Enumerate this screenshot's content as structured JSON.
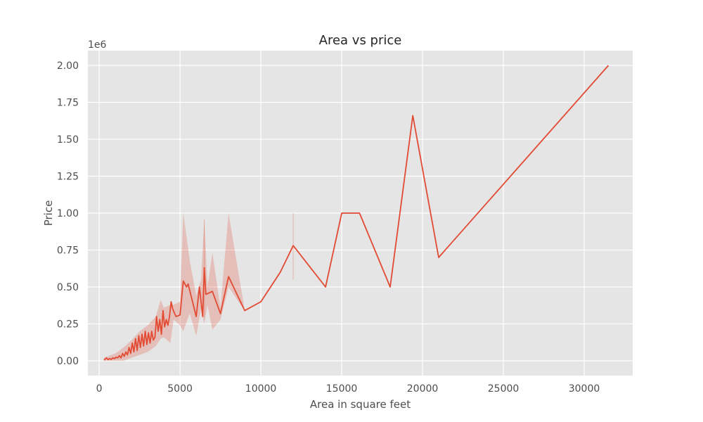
{
  "chart_data": {
    "type": "line",
    "title": "Area vs price",
    "xlabel": "Area in square feet",
    "ylabel": "Price",
    "y_scale_label": "1e6",
    "xlim": [
      -700,
      33000
    ],
    "ylim": [
      -0.1,
      2.1
    ],
    "x_ticks": [
      0,
      5000,
      10000,
      15000,
      20000,
      25000,
      30000
    ],
    "x_tick_labels": [
      "0",
      "5000",
      "10000",
      "15000",
      "20000",
      "25000",
      "30000"
    ],
    "y_ticks": [
      0.0,
      0.25,
      0.5,
      0.75,
      1.0,
      1.25,
      1.5,
      1.75,
      2.0
    ],
    "y_tick_labels": [
      "0.00",
      "0.25",
      "0.50",
      "0.75",
      "1.00",
      "1.25",
      "1.50",
      "1.75",
      "2.00"
    ],
    "grid": true,
    "colors": {
      "line": "#e24a33",
      "band": "#e24a33",
      "plot_bg": "#e5e5e5",
      "grid": "#ffffff"
    },
    "series": [
      {
        "points": [
          [
            300,
            0.005
          ],
          [
            450,
            0.02
          ],
          [
            550,
            0.008
          ],
          [
            650,
            0.015
          ],
          [
            750,
            0.01
          ],
          [
            850,
            0.02
          ],
          [
            950,
            0.015
          ],
          [
            1050,
            0.025
          ],
          [
            1150,
            0.02
          ],
          [
            1250,
            0.035
          ],
          [
            1350,
            0.02
          ],
          [
            1450,
            0.05
          ],
          [
            1550,
            0.03
          ],
          [
            1650,
            0.06
          ],
          [
            1750,
            0.04
          ],
          [
            1850,
            0.09
          ],
          [
            1950,
            0.05
          ],
          [
            2050,
            0.12
          ],
          [
            2150,
            0.06
          ],
          [
            2250,
            0.15
          ],
          [
            2350,
            0.07
          ],
          [
            2450,
            0.17
          ],
          [
            2550,
            0.09
          ],
          [
            2650,
            0.18
          ],
          [
            2750,
            0.1
          ],
          [
            2850,
            0.2
          ],
          [
            2950,
            0.11
          ],
          [
            3050,
            0.19
          ],
          [
            3150,
            0.12
          ],
          [
            3250,
            0.2
          ],
          [
            3350,
            0.14
          ],
          [
            3450,
            0.16
          ],
          [
            3550,
            0.3
          ],
          [
            3650,
            0.2
          ],
          [
            3750,
            0.28
          ],
          [
            3850,
            0.18
          ],
          [
            3950,
            0.34
          ],
          [
            4050,
            0.23
          ],
          [
            4150,
            0.28
          ],
          [
            4250,
            0.24
          ],
          [
            4350,
            0.3
          ],
          [
            4450,
            0.4
          ],
          [
            4550,
            0.35
          ],
          [
            4750,
            0.3
          ],
          [
            5000,
            0.31
          ],
          [
            5200,
            0.54
          ],
          [
            5400,
            0.5
          ],
          [
            5500,
            0.52
          ],
          [
            6000,
            0.3
          ],
          [
            6200,
            0.5
          ],
          [
            6400,
            0.3
          ],
          [
            6500,
            0.63
          ],
          [
            6600,
            0.45
          ],
          [
            7000,
            0.47
          ],
          [
            7500,
            0.32
          ],
          [
            8000,
            0.57
          ],
          [
            9000,
            0.34
          ],
          [
            10000,
            0.4
          ],
          [
            11200,
            0.6
          ],
          [
            12000,
            0.78
          ],
          [
            14000,
            0.5
          ],
          [
            15000,
            1.0
          ],
          [
            16100,
            1.0
          ],
          [
            18000,
            0.5
          ],
          [
            19400,
            1.66
          ],
          [
            21000,
            0.7
          ],
          [
            31500,
            2.0
          ]
        ],
        "band": [
          [
            300,
            0.0,
            0.02
          ],
          [
            1000,
            0.0,
            0.05
          ],
          [
            1500,
            0.0,
            0.09
          ],
          [
            2000,
            0.02,
            0.14
          ],
          [
            2500,
            0.04,
            0.2
          ],
          [
            3000,
            0.06,
            0.24
          ],
          [
            3500,
            0.1,
            0.3
          ],
          [
            3800,
            0.15,
            0.41
          ],
          [
            4000,
            0.16,
            0.36
          ],
          [
            4400,
            0.12,
            0.38
          ],
          [
            4600,
            0.28,
            0.38
          ],
          [
            5000,
            0.24,
            0.4
          ],
          [
            5200,
            0.2,
            1.0
          ],
          [
            5600,
            0.32,
            0.68
          ],
          [
            6000,
            0.17,
            0.44
          ],
          [
            6300,
            0.35,
            0.55
          ],
          [
            6500,
            0.25,
            0.96
          ],
          [
            6700,
            0.38,
            0.5
          ],
          [
            7000,
            0.21,
            0.73
          ],
          [
            7500,
            0.28,
            0.36
          ],
          [
            8000,
            0.5,
            1.0
          ],
          [
            9000,
            0.34,
            0.34
          ]
        ],
        "spikes": [
          [
            6500,
            0.3,
            0.96
          ],
          [
            12000,
            0.55,
            1.0
          ]
        ]
      }
    ]
  }
}
